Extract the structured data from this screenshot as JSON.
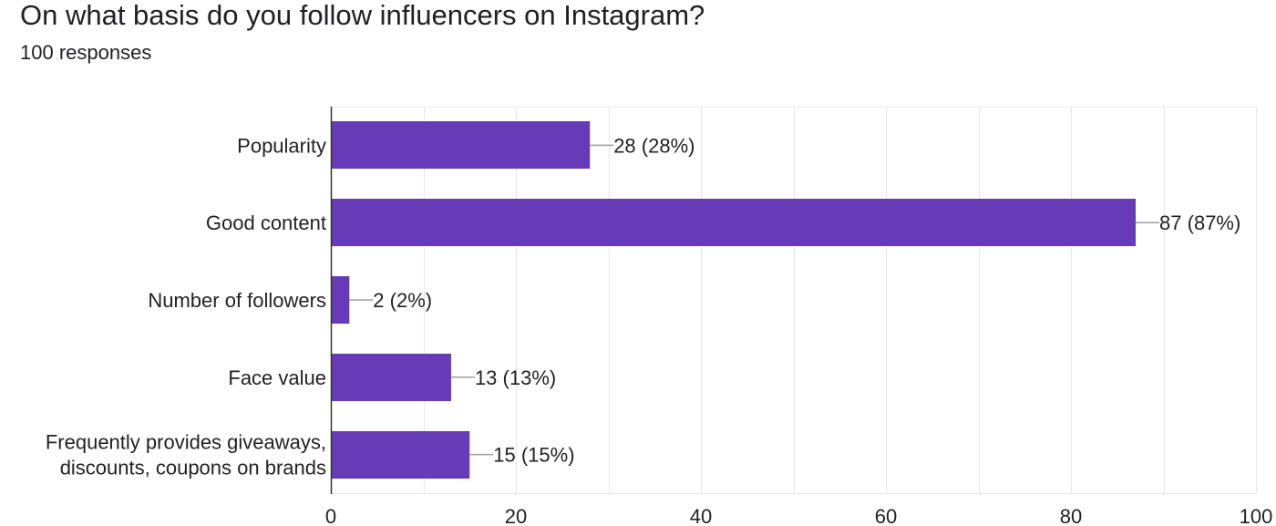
{
  "question": {
    "title": "On what basis do you follow influencers on Instagram?",
    "responses": "100 responses"
  },
  "chart_data": {
    "type": "bar",
    "orientation": "horizontal",
    "categories": [
      [
        "Popularity"
      ],
      [
        "Good content"
      ],
      [
        "Number of followers"
      ],
      [
        "Face value"
      ],
      [
        "Frequently provides giveaways,",
        "discounts, coupons on brands"
      ]
    ],
    "values": [
      28,
      87,
      2,
      13,
      15
    ],
    "data_labels": [
      "28 (28%)",
      "87 (87%)",
      "2 (2%)",
      "13 (13%)",
      "15 (15%)"
    ],
    "xlim": [
      0,
      100
    ],
    "xticks": [
      0,
      20,
      40,
      60,
      80,
      100
    ],
    "grid": true,
    "bar_color": "#673ab7",
    "gridline_color": "#e6e6e6",
    "axis_color": "#333333",
    "leader_color": "#9e9e9e"
  }
}
